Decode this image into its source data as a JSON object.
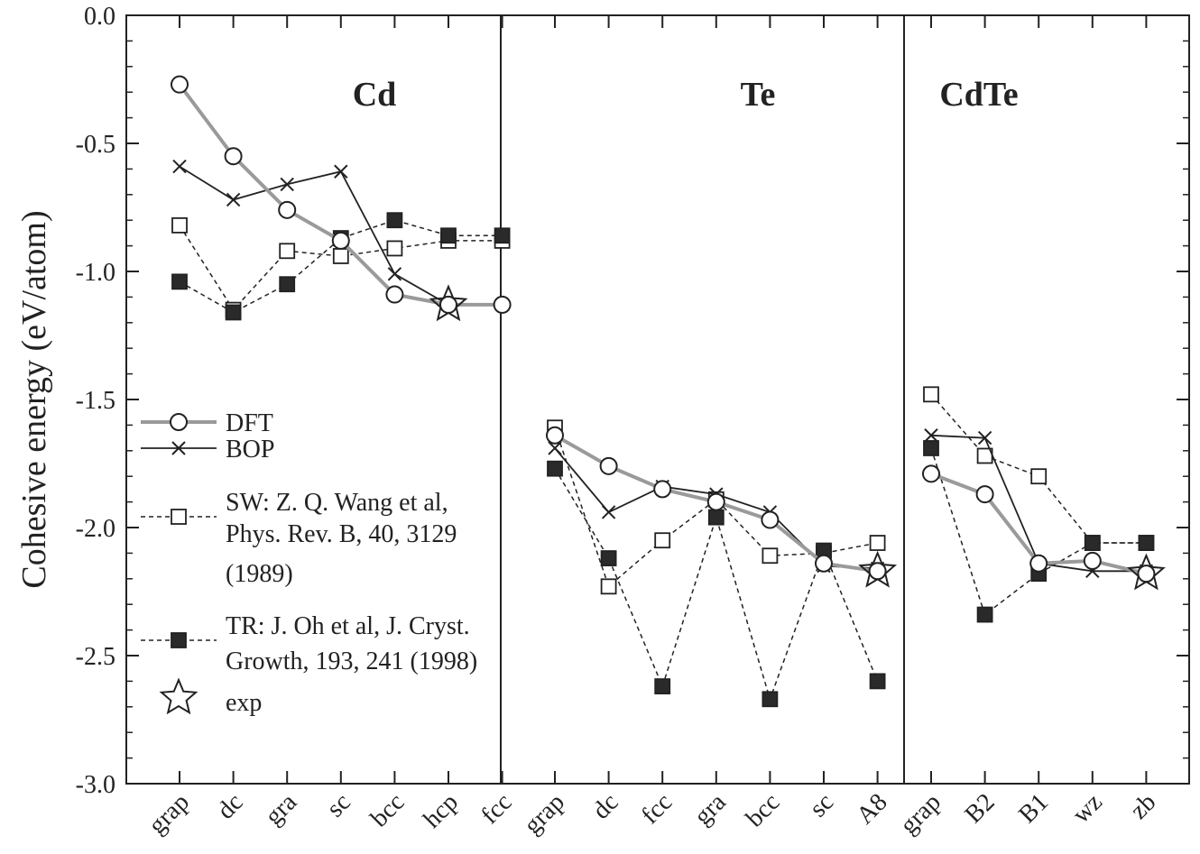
{
  "chart_data": {
    "type": "line",
    "ylabel": "Cohesive energy (eV/atom)",
    "ylim": [
      -3.0,
      0.0
    ],
    "yticks": [
      "0.0",
      "-0.5",
      "-1.0",
      "-1.5",
      "-2.0",
      "-2.5",
      "-3.0"
    ],
    "ytick_values": [
      0.0,
      -0.5,
      -1.0,
      -1.5,
      -2.0,
      -2.5,
      -3.0
    ],
    "panels": [
      {
        "title": "Cd",
        "categories": [
          "grap",
          "dc",
          "gra",
          "sc",
          "bcc",
          "hcp",
          "fcc"
        ],
        "series": {
          "DFT": [
            -0.27,
            -0.55,
            -0.76,
            -0.88,
            -1.09,
            -1.13,
            -1.13
          ],
          "BOP": [
            -0.59,
            -0.72,
            -0.66,
            -0.61,
            -1.01,
            -1.13,
            -1.13
          ],
          "SW": [
            -0.82,
            -1.15,
            -0.92,
            -0.94,
            -0.91,
            -0.88,
            -0.88
          ],
          "TR": [
            -1.04,
            -1.16,
            -1.05,
            -0.87,
            -0.8,
            -0.86,
            -0.86
          ]
        },
        "exp": [
          {
            "index": 5,
            "value": -1.13
          }
        ]
      },
      {
        "title": "Te",
        "categories": [
          "grap",
          "dc",
          "fcc",
          "gra",
          "bcc",
          "sc",
          "A8"
        ],
        "series": {
          "DFT": [
            -1.64,
            -1.76,
            -1.85,
            -1.9,
            -1.97,
            -2.14,
            -2.17
          ],
          "BOP": [
            -1.69,
            -1.94,
            -1.84,
            -1.87,
            -1.94,
            -2.15,
            -2.16
          ],
          "SW": [
            -1.61,
            -2.23,
            -2.05,
            -1.89,
            -2.11,
            -2.1,
            -2.06
          ],
          "TR": [
            -1.77,
            -2.12,
            -2.62,
            -1.96,
            -2.67,
            -2.09,
            -2.6
          ]
        },
        "exp": [
          {
            "index": 6,
            "value": -2.17
          }
        ]
      },
      {
        "title": "CdTe",
        "categories": [
          "grap",
          "B2",
          "B1",
          "wz",
          "zb"
        ],
        "series": {
          "DFT": [
            -1.79,
            -1.87,
            -2.14,
            -2.13,
            -2.18
          ],
          "BOP": [
            -1.64,
            -1.65,
            -2.14,
            -2.17,
            -2.17
          ],
          "SW": [
            -1.48,
            -1.72,
            -1.8,
            -2.06,
            -2.06
          ],
          "TR": [
            -1.69,
            -2.34,
            -2.18,
            -2.06,
            -2.06
          ]
        },
        "exp": [
          {
            "index": 4,
            "value": -2.18
          }
        ]
      }
    ],
    "legend": {
      "position": "left-middle",
      "entries": [
        {
          "key": "DFT",
          "lines": [
            "DFT"
          ]
        },
        {
          "key": "BOP",
          "lines": [
            "BOP"
          ]
        },
        {
          "key": "SW",
          "lines": [
            "SW: Z. Q. Wang et al,",
            "Phys. Rev. B, 40, 3129",
            "(1989)"
          ]
        },
        {
          "key": "TR",
          "lines": [
            "TR: J. Oh et al, J. Cryst.",
            "Growth, 193, 241 (1998)"
          ]
        },
        {
          "key": "exp",
          "lines": [
            "exp"
          ]
        }
      ]
    },
    "colors": {
      "dft_line": "#9a9a9a",
      "ink": "#222222",
      "filled_marker": "#2a2a2a",
      "background": "#ffffff"
    }
  }
}
